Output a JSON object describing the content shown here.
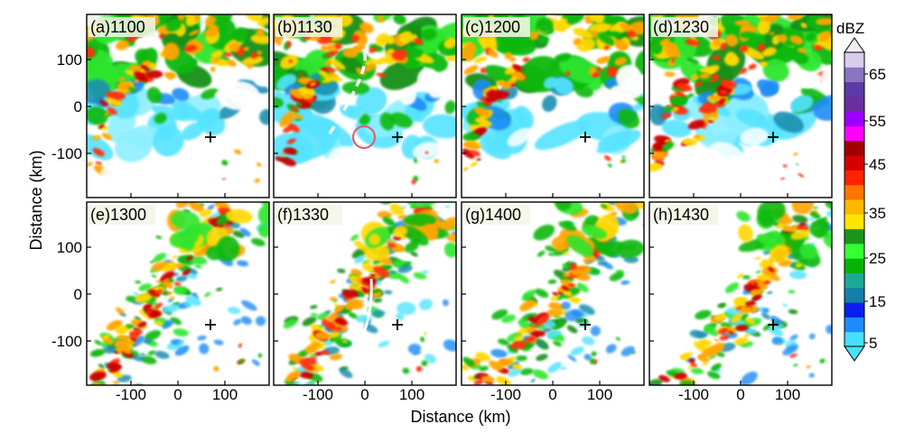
{
  "figure": {
    "y_axis_label": "Distance (km)",
    "x_axis_label": "Distance (km)",
    "y_ticks": [
      "100",
      "0",
      "-100"
    ],
    "x_ticks": [
      "-100",
      "0",
      "100"
    ],
    "colorbar": {
      "unit": "dBZ",
      "tick_labels": [
        "65",
        "55",
        "45",
        "35",
        "25",
        "15",
        "5"
      ],
      "colors": [
        "#47e0ff",
        "#1c8cff",
        "#0a1cf0",
        "#137fa8",
        "#1ea896",
        "#05b305",
        "#33ff33",
        "#1b941b",
        "#ffe600",
        "#ffb700",
        "#ff7300",
        "#ff2200",
        "#d40000",
        "#a00000",
        "#ff00ff",
        "#9a00ff",
        "#6a2ea0",
        "#5a3ba8",
        "#8a74c4",
        "#d8cdec"
      ]
    },
    "panels": [
      {
        "label": "(a)1100"
      },
      {
        "label": "(b)1130"
      },
      {
        "label": "(c)1200"
      },
      {
        "label": "(d)1230"
      },
      {
        "label": "(e)1300"
      },
      {
        "label": "(f)1330"
      },
      {
        "label": "(g)1400"
      },
      {
        "label": "(h)1430"
      }
    ]
  }
}
